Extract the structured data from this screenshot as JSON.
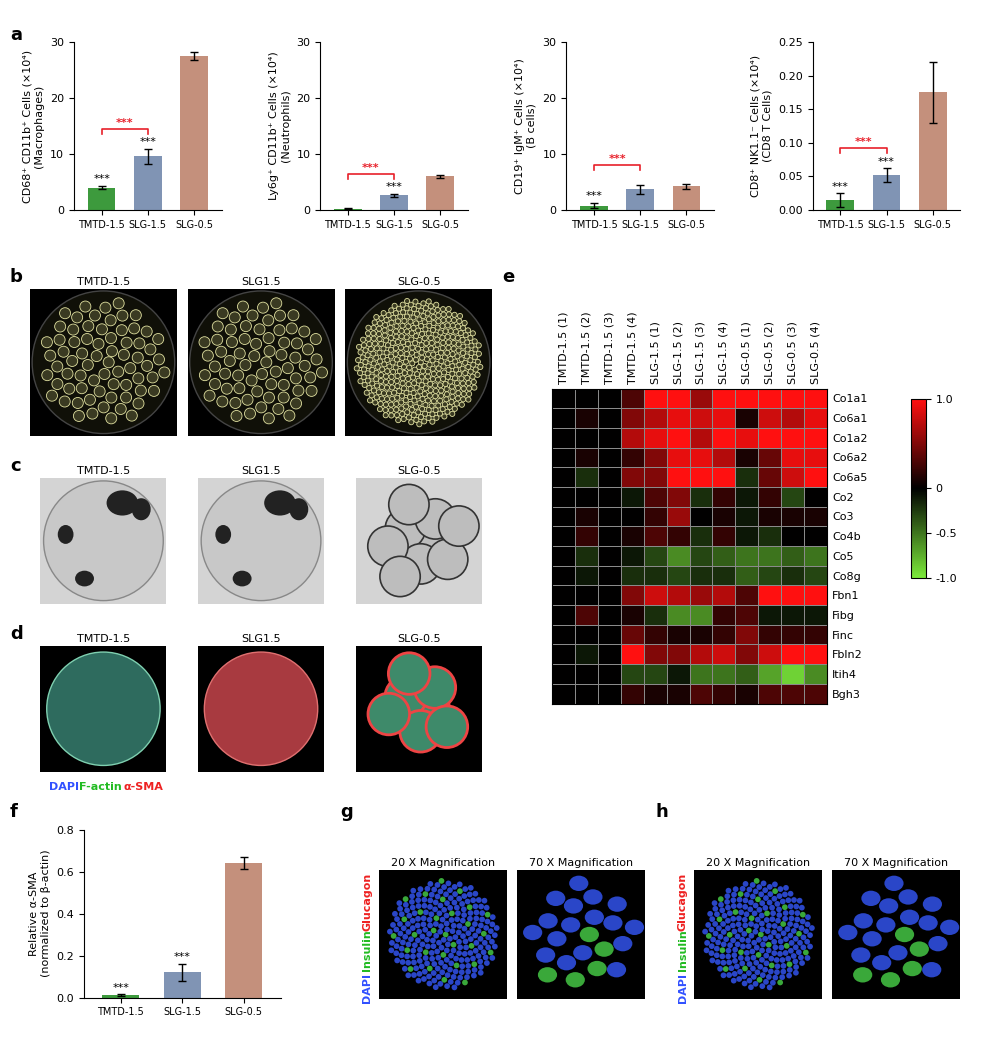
{
  "chart_data": [
    {
      "panel": "a",
      "type": "bar",
      "ylabel": "CD68⁺ CD11b⁺ Cells (×10⁴)\n(Macrophages)",
      "categories": [
        "TMTD-1.5",
        "SLG-1.5",
        "SLG-0.5"
      ],
      "values": [
        4.0,
        9.6,
        27.5
      ],
      "errors": [
        0.3,
        1.3,
        0.8
      ],
      "colors": [
        "#3d9a3d",
        "#8094b4",
        "#c4907c"
      ],
      "ylim": [
        0,
        30
      ],
      "yticks": [
        0,
        10,
        20,
        30
      ],
      "bar_marks": [
        "***",
        "***",
        null
      ],
      "bracket": {
        "between": [
          "TMTD-1.5",
          "SLG-1.5"
        ],
        "text": "***",
        "color": "#e8202a"
      }
    },
    {
      "panel": "a",
      "type": "bar",
      "ylabel": "Ly6g⁺ CD11b⁺ Cells (×10⁴)\n(Neutrophils)",
      "categories": [
        "TMTD-1.5",
        "SLG-1.5",
        "SLG-0.5"
      ],
      "values": [
        0.2,
        2.6,
        6.0
      ],
      "errors": [
        0.1,
        0.3,
        0.2
      ],
      "colors": [
        "#3d9a3d",
        "#8094b4",
        "#c4907c"
      ],
      "ylim": [
        0,
        30
      ],
      "yticks": [
        0,
        10,
        20,
        30
      ],
      "bar_marks": [
        null,
        "***",
        null
      ],
      "bracket": {
        "between": [
          "TMTD-1.5",
          "SLG-1.5"
        ],
        "text": "***",
        "color": "#e8202a"
      }
    },
    {
      "panel": "a",
      "type": "bar",
      "ylabel": "CD19⁺ IgM⁺ Cells (×10⁴)\n(B cells)",
      "categories": [
        "TMTD-1.5",
        "SLG-1.5",
        "SLG-0.5"
      ],
      "values": [
        0.8,
        3.7,
        4.2
      ],
      "errors": [
        0.5,
        0.8,
        0.4
      ],
      "colors": [
        "#3d9a3d",
        "#8094b4",
        "#c4907c"
      ],
      "ylim": [
        0,
        30
      ],
      "yticks": [
        0,
        10,
        20,
        30
      ],
      "bar_marks": [
        "***",
        null,
        null
      ],
      "bracket": {
        "between": [
          "TMTD-1.5",
          "SLG-1.5"
        ],
        "text": "***",
        "color": "#e8202a"
      }
    },
    {
      "panel": "a",
      "type": "bar",
      "ylabel": "CD8⁺ NK1.1⁻ Cells (×10⁴)\n(CD8 T Cells)",
      "categories": [
        "TMTD-1.5",
        "SLG-1.5",
        "SLG-0.5"
      ],
      "values": [
        0.015,
        0.052,
        0.175
      ],
      "errors": [
        0.01,
        0.01,
        0.045
      ],
      "colors": [
        "#3d9a3d",
        "#8094b4",
        "#c4907c"
      ],
      "ylim": [
        0,
        0.25
      ],
      "yticks": [
        {
          "value": 0,
          "label": "0.00"
        },
        {
          "value": 0.05,
          "label": "0.05"
        },
        {
          "value": 0.1,
          "label": "0.10"
        },
        {
          "value": 0.15,
          "label": "0.15"
        },
        {
          "value": 0.2,
          "label": "0.20"
        },
        {
          "value": 0.25,
          "label": "0.25"
        }
      ],
      "bar_marks": [
        "***",
        "***",
        null
      ],
      "bracket": {
        "between": [
          "TMTD-1.5",
          "SLG-1.5"
        ],
        "text": "***",
        "color": "#e8202a"
      }
    },
    {
      "panel": "e",
      "type": "heatmap",
      "columns": [
        "TMTD-1.5 (1)",
        "TMTD-1.5 (2)",
        "TMTD-1.5 (3)",
        "TMTD-1.5 (4)",
        "SLG-1.5 (1)",
        "SLG-1.5 (2)",
        "SLG-1.5 (3)",
        "SLG-1.5 (4)",
        "SLG-0.5 (1)",
        "SLG-0.5 (2)",
        "SLG-0.5 (3)",
        "SLG-0.5 (4)"
      ],
      "rows": [
        "Co1a1",
        "Co6a1",
        "Co1a2",
        "Co6a2",
        "Co6a5",
        "Co2",
        "Co3",
        "Co4b",
        "Co5",
        "Co8g",
        "Fbn1",
        "Fibg",
        "Finc",
        "Fbln2",
        "Itih4",
        "Bgh3"
      ],
      "cells": [
        [
          0,
          0,
          0,
          0.3,
          1,
          1,
          0.6,
          1,
          1,
          1,
          1,
          1
        ],
        [
          0,
          0.1,
          0,
          0.5,
          0.7,
          0.9,
          0.8,
          0.9,
          0.1,
          0.8,
          0.7,
          0.9
        ],
        [
          0,
          0,
          0,
          0.7,
          0.9,
          1,
          0.7,
          1,
          0.9,
          1,
          1,
          1
        ],
        [
          0,
          0.1,
          0,
          0.2,
          0.5,
          0.9,
          0.9,
          0.7,
          0.1,
          0.4,
          0.9,
          0.9
        ],
        [
          0,
          -0.2,
          0,
          0.5,
          0.5,
          1,
          1,
          1,
          -0.2,
          0.4,
          0.8,
          1
        ],
        [
          0,
          0,
          0,
          -0.1,
          0.3,
          0.5,
          -0.2,
          0.2,
          -0.1,
          0.2,
          -0.3,
          0
        ],
        [
          0,
          0.1,
          0,
          0,
          0.2,
          0.6,
          0,
          0.1,
          -0.1,
          0.1,
          0.1,
          0.1
        ],
        [
          0,
          0.2,
          0,
          0.1,
          0.3,
          0.2,
          -0.2,
          0.2,
          -0.1,
          -0.2,
          0,
          0
        ],
        [
          0,
          -0.2,
          0,
          -0.1,
          -0.3,
          -0.6,
          -0.3,
          -0.4,
          -0.5,
          -0.5,
          -0.4,
          -0.5
        ],
        [
          0,
          -0.1,
          0,
          -0.2,
          -0.2,
          -0.3,
          -0.2,
          -0.2,
          -0.4,
          -0.3,
          -0.2,
          -0.3
        ],
        [
          0,
          0,
          0,
          0.5,
          0.8,
          0.7,
          0.6,
          0.7,
          0.3,
          1,
          1,
          1
        ],
        [
          0,
          0.3,
          0,
          0.1,
          -0.2,
          -0.6,
          -0.6,
          0.2,
          0.3,
          -0.1,
          -0.1,
          -0.1
        ],
        [
          0,
          0,
          0,
          0.4,
          0.2,
          0.1,
          0.1,
          0.2,
          0.5,
          0.2,
          0.2,
          0.2
        ],
        [
          0,
          -0.1,
          0,
          1,
          0.5,
          0.5,
          0.7,
          0.8,
          0.5,
          0.8,
          1,
          1
        ],
        [
          0,
          0,
          0,
          -0.3,
          -0.3,
          -0.1,
          -0.5,
          -0.5,
          -0.4,
          -0.7,
          -0.9,
          -0.6
        ],
        [
          0,
          0,
          0,
          0.2,
          0.1,
          0.1,
          0.3,
          0.2,
          0.1,
          0.3,
          0.3,
          0.3
        ]
      ],
      "colorbar_range": [
        -1,
        1
      ],
      "colorbar_ticks": [
        {
          "value": 1,
          "label": "1.0"
        },
        0,
        -0.5,
        {
          "value": -1,
          "label": "-1.0"
        }
      ],
      "colors": [
        "#7be83a",
        "#000000",
        "#ff1010"
      ]
    },
    {
      "panel": "f",
      "type": "bar",
      "ylabel": "Relative α-SMA\n(normalized to β-actin)",
      "categories": [
        "TMTD-1.5",
        "SLG-1.5",
        "SLG-0.5"
      ],
      "values": [
        0.01,
        0.12,
        0.64
      ],
      "errors": [
        0.005,
        0.04,
        0.03
      ],
      "colors": [
        "#3d9a3d",
        "#8094b4",
        "#c4907c"
      ],
      "ylim": [
        0,
        0.8
      ],
      "yticks": [
        {
          "value": 0,
          "label": "0.0"
        },
        {
          "value": 0.2,
          "label": "0.2"
        },
        {
          "value": 0.4,
          "label": "0.4"
        },
        {
          "value": 0.6,
          "label": "0.6"
        },
        {
          "value": 0.8,
          "label": "0.8"
        }
      ],
      "bar_marks": [
        "***",
        "***",
        null
      ]
    }
  ],
  "image_panels": [
    {
      "panel": "b",
      "titles": [
        "TMTD-1.5",
        "SLG1.5",
        "SLG-0.5"
      ]
    },
    {
      "panel": "c",
      "titles": [
        "TMTD-1.5",
        "SLG1.5",
        "SLG-0.5"
      ]
    },
    {
      "panel": "d",
      "titles": [
        "TMTD-1.5",
        "SLG1.5",
        "SLG-0.5"
      ],
      "stain": [
        {
          "text": "DAPI",
          "color": "#3050ff"
        },
        {
          "text": "F-actin",
          "color": "#22bb22"
        },
        {
          "text": "α-SMA",
          "color": "#ee2222"
        }
      ]
    },
    {
      "panel": "g",
      "titles": [
        "20 X Magnification",
        "70 X Magnification"
      ],
      "stain": [
        {
          "text": "DAPI",
          "color": "#3050ff"
        },
        {
          "text": "Insulin",
          "color": "#22bb22"
        },
        {
          "text": "Glucagon",
          "color": "#ee2222"
        }
      ]
    },
    {
      "panel": "h",
      "titles": [
        "20 X Magnification",
        "70 X Magnification"
      ],
      "stain": [
        {
          "text": "DAPI",
          "color": "#3050ff"
        },
        {
          "text": "Insulin",
          "color": "#22bb22"
        },
        {
          "text": "Glucagon",
          "color": "#ee2222"
        }
      ]
    }
  ]
}
